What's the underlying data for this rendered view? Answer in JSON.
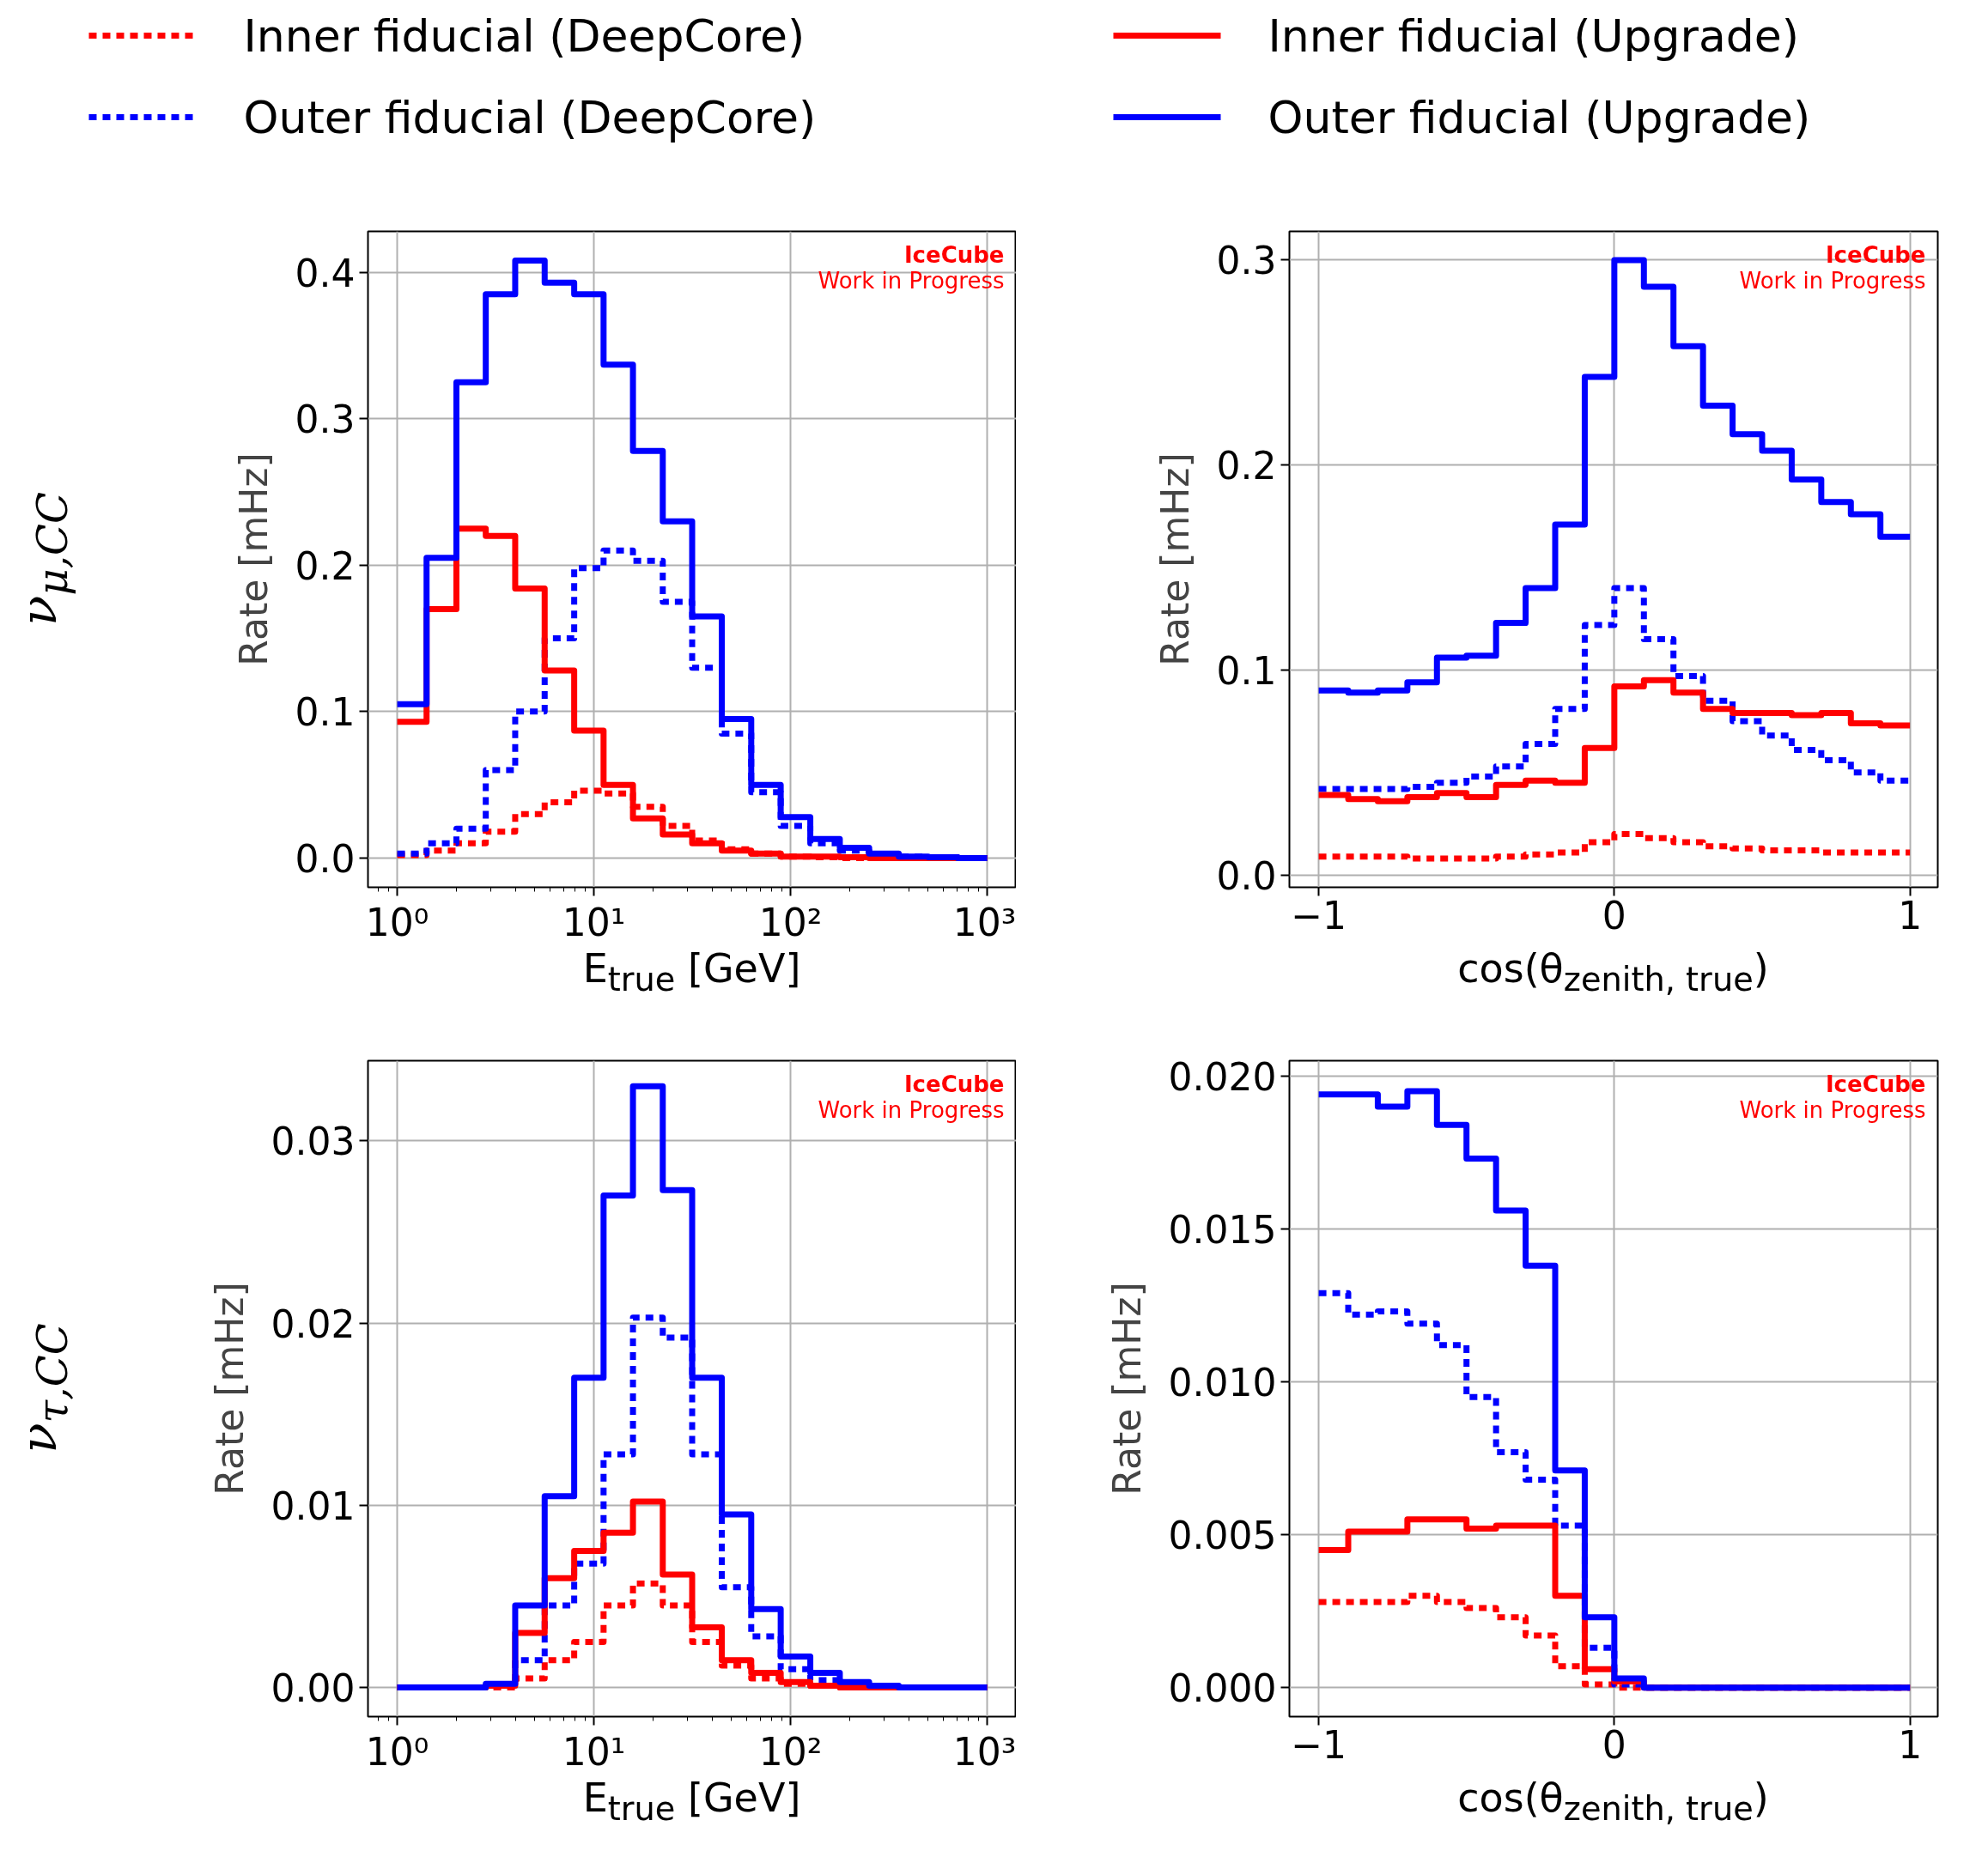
{
  "chart_data": [
    {
      "type": "histogram",
      "title": "ν$_{μ,CC}$",
      "xlabel": "E$_{true}$ [GeV]",
      "ylabel": "Rate [mHz]",
      "log": "x",
      "grid": true,
      "legend": "top",
      "annotations": [
        "IceCube",
        "Work in Progress"
      ],
      "bins": [
        1,
        1.41,
        2,
        2.82,
        3.98,
        5.62,
        7.94,
        11.2,
        15.8,
        22.4,
        31.6,
        44.7,
        63.1,
        89.1,
        126,
        178,
        251,
        355,
        501,
        708,
        1000
      ],
      "xlim": [
        0.71,
        1406
      ],
      "ylim": [
        -0.02,
        0.428
      ],
      "xticks": [
        {
          "value": 1,
          "label": "10⁰"
        },
        {
          "value": 10,
          "label": "10¹"
        },
        {
          "value": 100,
          "label": "10²"
        },
        {
          "value": 1000,
          "label": "10³"
        }
      ],
      "yticks": [
        {
          "value": 0,
          "label": "0.0"
        },
        0.1,
        0.2,
        0.3,
        0.4
      ],
      "series": [
        {
          "name": "Inner fiducial (DeepCore)",
          "color": "#ff0000",
          "line_style": "dotted",
          "values": [
            0.002,
            0.005,
            0.01,
            0.018,
            0.03,
            0.038,
            0.046,
            0.044,
            0.035,
            0.022,
            0.012,
            0.006,
            0.003,
            0.001,
            0.0005,
            0,
            0,
            0,
            0,
            0
          ]
        },
        {
          "name": "Outer fiducial (DeepCore)",
          "color": "#0000ff",
          "line_style": "dotted",
          "values": [
            0.003,
            0.01,
            0.02,
            0.06,
            0.1,
            0.15,
            0.198,
            0.21,
            0.203,
            0.175,
            0.13,
            0.085,
            0.045,
            0.022,
            0.01,
            0.005,
            0.002,
            0.001,
            0.0005,
            0
          ]
        },
        {
          "name": "Inner fiducial (Upgrade)",
          "color": "#ff0000",
          "line_style": "solid",
          "values": [
            0.093,
            0.17,
            0.225,
            0.22,
            0.184,
            0.128,
            0.087,
            0.05,
            0.027,
            0.016,
            0.01,
            0.005,
            0.003,
            0.001,
            0.001,
            0.0005,
            0,
            0,
            0,
            0
          ]
        },
        {
          "name": "Outer fiducial (Upgrade)",
          "color": "#0000ff",
          "line_style": "solid",
          "values": [
            0.105,
            0.205,
            0.325,
            0.385,
            0.408,
            0.393,
            0.385,
            0.337,
            0.278,
            0.23,
            0.165,
            0.095,
            0.05,
            0.028,
            0.013,
            0.007,
            0.003,
            0.001,
            0.0005,
            0
          ]
        }
      ]
    },
    {
      "type": "histogram",
      "xlabel": "cos(θ$_{zenith, true}$)",
      "ylabel": "Rate [mHz]",
      "grid": true,
      "legend": "top",
      "annotations": [
        "IceCube",
        "Work in Progress"
      ],
      "bins": [
        -1,
        -0.9,
        -0.8,
        -0.7,
        -0.6,
        -0.5,
        -0.4,
        -0.3,
        -0.2,
        -0.1,
        0,
        0.1,
        0.2,
        0.3,
        0.4,
        0.5,
        0.6,
        0.7,
        0.8,
        0.9,
        1
      ],
      "xlim": [
        -1.099,
        1.094
      ],
      "ylim": [
        -0.006,
        0.314
      ],
      "xticks": [
        {
          "value": -1,
          "label": "−1"
        },
        0,
        1
      ],
      "yticks": [
        {
          "value": 0,
          "label": "0.0"
        },
        0.1,
        0.2,
        0.3
      ],
      "series": [
        {
          "name": "Inner fiducial (DeepCore)",
          "color": "#ff0000",
          "line_style": "dotted",
          "values": [
            0.009,
            0.009,
            0.009,
            0.008,
            0.008,
            0.008,
            0.009,
            0.01,
            0.011,
            0.016,
            0.02,
            0.018,
            0.016,
            0.014,
            0.013,
            0.012,
            0.012,
            0.011,
            0.011,
            0.011
          ]
        },
        {
          "name": "Outer fiducial (DeepCore)",
          "color": "#0000ff",
          "line_style": "dotted",
          "values": [
            0.042,
            0.042,
            0.042,
            0.043,
            0.045,
            0.048,
            0.053,
            0.064,
            0.081,
            0.122,
            0.14,
            0.115,
            0.097,
            0.085,
            0.075,
            0.068,
            0.061,
            0.056,
            0.05,
            0.046
          ]
        },
        {
          "name": "Inner fiducial (Upgrade)",
          "color": "#ff0000",
          "line_style": "solid",
          "values": [
            0.039,
            0.037,
            0.036,
            0.038,
            0.04,
            0.038,
            0.044,
            0.046,
            0.045,
            0.062,
            0.092,
            0.095,
            0.089,
            0.081,
            0.079,
            0.079,
            0.078,
            0.079,
            0.074,
            0.073
          ]
        },
        {
          "name": "Outer fiducial (Upgrade)",
          "color": "#0000ff",
          "line_style": "solid",
          "values": [
            0.09,
            0.089,
            0.09,
            0.094,
            0.106,
            0.107,
            0.123,
            0.14,
            0.171,
            0.243,
            0.3,
            0.287,
            0.258,
            0.229,
            0.215,
            0.207,
            0.193,
            0.182,
            0.176,
            0.165
          ]
        }
      ]
    },
    {
      "type": "histogram",
      "title": "ν$_{τ,CC}$",
      "xlabel": "E$_{true}$ [GeV]",
      "ylabel": "Rate [mHz]",
      "log": "x",
      "grid": true,
      "legend": "top",
      "annotations": [
        "IceCube",
        "Work in Progress"
      ],
      "bins": [
        1,
        1.41,
        2,
        2.82,
        3.98,
        5.62,
        7.94,
        11.2,
        15.8,
        22.4,
        31.6,
        44.7,
        63.1,
        89.1,
        126,
        178,
        251,
        355,
        501,
        708,
        1000
      ],
      "xlim": [
        0.71,
        1406
      ],
      "ylim": [
        -0.0016,
        0.0344
      ],
      "xticks": [
        {
          "value": 1,
          "label": "10⁰"
        },
        {
          "value": 10,
          "label": "10¹"
        },
        {
          "value": 100,
          "label": "10²"
        },
        {
          "value": 1000,
          "label": "10³"
        }
      ],
      "yticks": [
        {
          "value": 0,
          "label": "0.00"
        },
        0.01,
        0.02,
        0.03
      ],
      "series": [
        {
          "name": "Inner fiducial (DeepCore)",
          "color": "#ff0000",
          "line_style": "dotted",
          "values": [
            0,
            0,
            0,
            0,
            0.0005,
            0.0015,
            0.0025,
            0.0045,
            0.0057,
            0.0045,
            0.0025,
            0.0012,
            0.0005,
            0.0002,
            0.0001,
            0,
            0,
            0,
            0,
            0
          ]
        },
        {
          "name": "Outer fiducial (DeepCore)",
          "color": "#0000ff",
          "line_style": "dotted",
          "values": [
            0,
            0,
            0,
            0.0001,
            0.0015,
            0.0045,
            0.0068,
            0.0128,
            0.0203,
            0.0192,
            0.0128,
            0.0055,
            0.0028,
            0.001,
            0.0004,
            0.0002,
            0,
            0,
            0,
            0
          ]
        },
        {
          "name": "Inner fiducial (Upgrade)",
          "color": "#ff0000",
          "line_style": "solid",
          "values": [
            0,
            0,
            0,
            0.0001,
            0.003,
            0.006,
            0.0075,
            0.0085,
            0.0102,
            0.0062,
            0.0033,
            0.0015,
            0.0008,
            0.0003,
            0.0001,
            0,
            0,
            0,
            0,
            0
          ]
        },
        {
          "name": "Outer fiducial (Upgrade)",
          "color": "#0000ff",
          "line_style": "solid",
          "values": [
            0,
            0,
            0,
            0.0002,
            0.0045,
            0.0105,
            0.017,
            0.027,
            0.033,
            0.0273,
            0.017,
            0.0095,
            0.0043,
            0.0017,
            0.0008,
            0.0003,
            0.0001,
            0,
            0,
            0
          ]
        }
      ]
    },
    {
      "type": "histogram",
      "xlabel": "cos(θ$_{zenith, true}$)",
      "ylabel": "Rate [mHz]",
      "grid": true,
      "legend": "top",
      "annotations": [
        "IceCube",
        "Work in Progress"
      ],
      "bins": [
        -1,
        -0.9,
        -0.8,
        -0.7,
        -0.6,
        -0.5,
        -0.4,
        -0.3,
        -0.2,
        -0.1,
        0,
        0.1,
        0.2,
        0.3,
        0.4,
        0.5,
        0.6,
        0.7,
        0.8,
        0.9,
        1
      ],
      "xlim": [
        -1.099,
        1.094
      ],
      "ylim": [
        -0.00095,
        0.0205
      ],
      "xticks": [
        {
          "value": -1,
          "label": "−1"
        },
        0,
        1
      ],
      "yticks": [
        {
          "value": 0,
          "label": "0.000"
        },
        {
          "value": 0.005,
          "label": "0.005"
        },
        {
          "value": 0.01,
          "label": "0.010"
        },
        {
          "value": 0.015,
          "label": "0.015"
        },
        {
          "value": 0.02,
          "label": "0.020"
        }
      ],
      "series": [
        {
          "name": "Inner fiducial (DeepCore)",
          "color": "#ff0000",
          "line_style": "dotted",
          "values": [
            0.0028,
            0.0028,
            0.0028,
            0.003,
            0.0028,
            0.0026,
            0.0023,
            0.0017,
            0.0007,
            0.0001,
            0,
            0,
            0,
            0,
            0,
            0,
            0,
            0,
            0,
            0
          ]
        },
        {
          "name": "Outer fiducial (DeepCore)",
          "color": "#0000ff",
          "line_style": "dotted",
          "values": [
            0.0129,
            0.0122,
            0.0123,
            0.0119,
            0.0112,
            0.0095,
            0.0077,
            0.0068,
            0.0053,
            0.0013,
            0.0001,
            0,
            0,
            0,
            0,
            0,
            0,
            0,
            0,
            0
          ]
        },
        {
          "name": "Inner fiducial (Upgrade)",
          "color": "#ff0000",
          "line_style": "solid",
          "values": [
            0.0045,
            0.0051,
            0.0051,
            0.0055,
            0.0055,
            0.0052,
            0.0053,
            0.0053,
            0.003,
            0.0006,
            0.0002,
            0,
            0,
            0,
            0,
            0,
            0,
            0,
            0,
            0
          ]
        },
        {
          "name": "Outer fiducial (Upgrade)",
          "color": "#0000ff",
          "line_style": "solid",
          "values": [
            0.0194,
            0.0194,
            0.019,
            0.0195,
            0.0184,
            0.0173,
            0.0156,
            0.0138,
            0.0071,
            0.0023,
            0.0003,
            0,
            0,
            0,
            0,
            0,
            0,
            0,
            0,
            0
          ]
        }
      ]
    }
  ]
}
